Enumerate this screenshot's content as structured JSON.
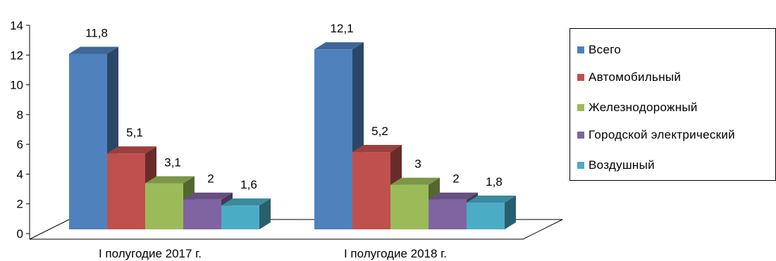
{
  "chart_data": {
    "type": "bar",
    "categories": [
      "I полугодие 2017 г.",
      "I полугодие 2018 г."
    ],
    "series": [
      {
        "name": "Всего",
        "values": [
          11.8,
          12.1
        ],
        "labels": [
          "11,8",
          "12,1"
        ],
        "color": "#4F81BD"
      },
      {
        "name": "Автомобильный",
        "values": [
          5.1,
          5.2
        ],
        "labels": [
          "5,1",
          "5,2"
        ],
        "color": "#C0504D"
      },
      {
        "name": "Железнодорожный",
        "values": [
          3.1,
          3
        ],
        "labels": [
          "3,1",
          "3"
        ],
        "color": "#9BBB59"
      },
      {
        "name": "Городской электрический",
        "values": [
          2,
          2
        ],
        "labels": [
          "2",
          "2"
        ],
        "color": "#8064A2"
      },
      {
        "name": "Воздушный",
        "values": [
          1.6,
          1.8
        ],
        "labels": [
          "1,6",
          "1,8"
        ],
        "color": "#4BACC6"
      }
    ],
    "yticks": [
      "0",
      "2",
      "4",
      "6",
      "8",
      "10",
      "12",
      "14"
    ],
    "ylim": [
      0,
      14
    ],
    "legend_position": "right",
    "grid": false,
    "style": "3d-clustered-column"
  }
}
